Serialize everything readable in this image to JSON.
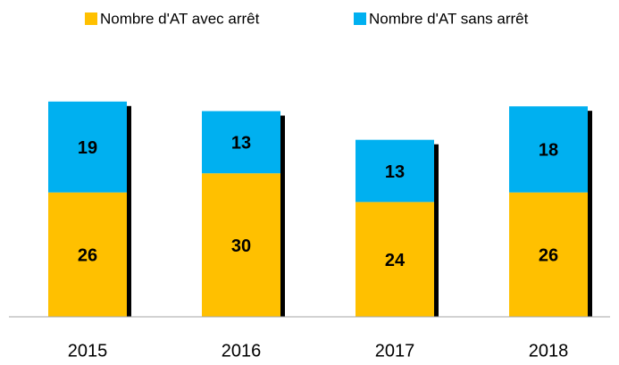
{
  "chart_data": {
    "type": "stacked_bar",
    "categories": [
      "2015",
      "2016",
      "2017",
      "2018"
    ],
    "series": [
      {
        "name": "Nombre d'AT avec arrêt",
        "color": "#FFC000",
        "values": [
          26,
          30,
          24,
          26
        ]
      },
      {
        "name": "Nombre d'AT sans arrêt",
        "color": "#00B0F0",
        "values": [
          19,
          13,
          13,
          18
        ]
      }
    ],
    "legend": "top"
  }
}
